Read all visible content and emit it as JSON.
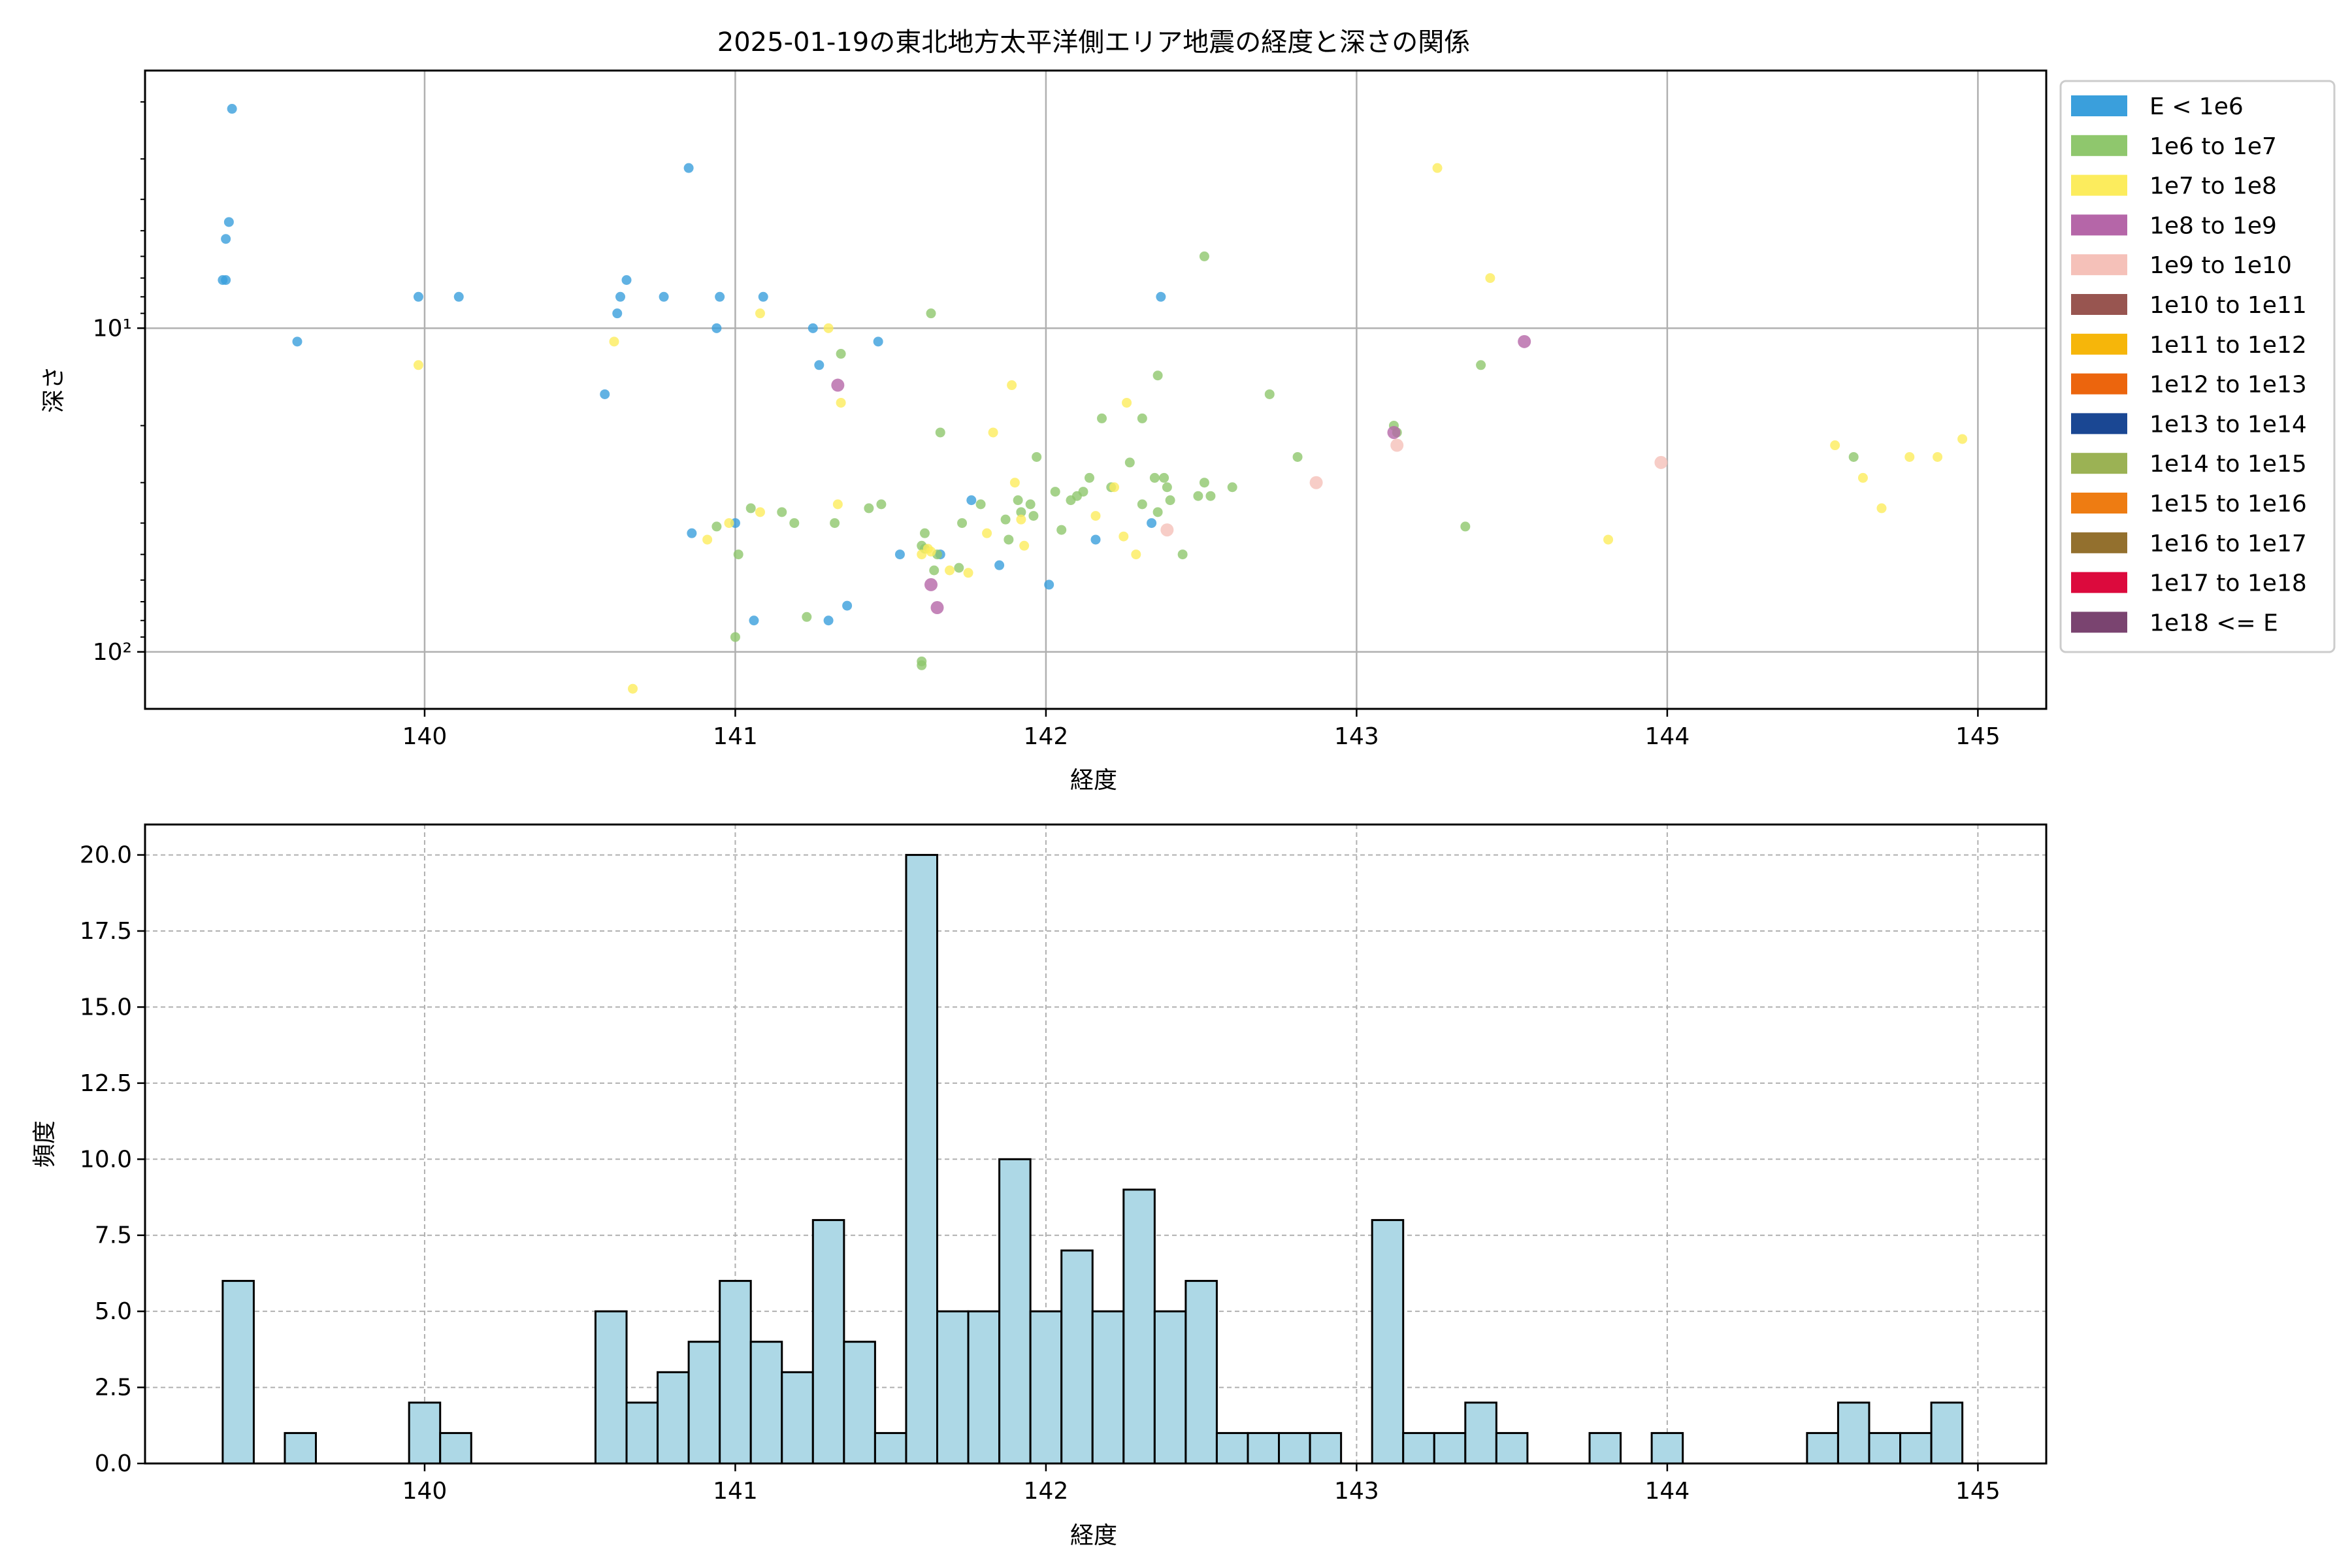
{
  "chart_data": [
    {
      "type": "scatter",
      "title": "2025-01-19の東北地方太平洋側エリア地震の経度と深さの関係",
      "xlabel": "経度",
      "ylabel": "深さ",
      "xlim": [
        139.1,
        145.22
      ],
      "ylim": [
        150,
        1.6
      ],
      "yscale": "log",
      "y_inverted": true,
      "xticks": [
        140,
        141,
        142,
        143,
        144,
        145
      ],
      "xtick_labels": [
        "140",
        "141",
        "142",
        "143",
        "144",
        "145"
      ],
      "yticks": [
        10,
        100
      ],
      "ytick_labels": [
        "10¹",
        "10²"
      ],
      "grid": true,
      "legend_position": "outside-right",
      "legend": [
        {
          "label": "E < 1e6",
          "color": "#3a9fdc"
        },
        {
          "label": "1e6 to 1e7",
          "color": "#8fc76d"
        },
        {
          "label": "1e7 to 1e8",
          "color": "#fcec5d"
        },
        {
          "label": "1e8 to 1e9",
          "color": "#b566a8"
        },
        {
          "label": "1e9 to 1e10",
          "color": "#f5c1b9"
        },
        {
          "label": "1e10 to 1e11",
          "color": "#985550"
        },
        {
          "label": "1e11 to 1e12",
          "color": "#f6b60a"
        },
        {
          "label": "1e12 to 1e13",
          "color": "#ec650d"
        },
        {
          "label": "1e13 to 1e14",
          "color": "#1a4793"
        },
        {
          "label": "1e14 to 1e15",
          "color": "#9bb254"
        },
        {
          "label": "1e15 to 1e16",
          "color": "#ee7c12"
        },
        {
          "label": "1e16 to 1e17",
          "color": "#93702e"
        },
        {
          "label": "1e17 to 1e18",
          "color": "#dc0a3d"
        },
        {
          "label": "1e18 <= E",
          "color": "#7a4470"
        }
      ],
      "series": [
        {
          "category": 0,
          "points": [
            [
              139.38,
              2.1
            ],
            [
              139.37,
              4.7
            ],
            [
              139.36,
              5.3
            ],
            [
              139.36,
              7.1
            ],
            [
              139.35,
              7.1
            ],
            [
              139.59,
              11
            ],
            [
              139.98,
              8.0
            ],
            [
              140.11,
              8.0
            ],
            [
              140.58,
              16
            ],
            [
              140.62,
              9
            ],
            [
              140.63,
              8
            ],
            [
              140.65,
              7.1
            ],
            [
              140.77,
              8
            ],
            [
              140.85,
              3.2
            ],
            [
              140.95,
              8
            ],
            [
              140.94,
              10
            ],
            [
              141.09,
              8
            ],
            [
              140.86,
              43
            ],
            [
              141.0,
              40
            ],
            [
              141.06,
              80
            ],
            [
              141.25,
              10
            ],
            [
              141.27,
              13
            ],
            [
              141.3,
              80
            ],
            [
              141.36,
              72
            ],
            [
              141.46,
              11
            ],
            [
              141.53,
              50
            ],
            [
              141.66,
              50
            ],
            [
              141.76,
              34
            ],
            [
              141.85,
              54
            ],
            [
              142.01,
              62
            ],
            [
              142.16,
              45
            ],
            [
              142.34,
              40
            ],
            [
              142.37,
              8
            ]
          ]
        },
        {
          "category": 1,
          "points": [
            [
              140.94,
              41
            ],
            [
              141.01,
              50
            ],
            [
              141.0,
              90
            ],
            [
              141.05,
              36
            ],
            [
              141.15,
              37
            ],
            [
              141.19,
              40
            ],
            [
              141.23,
              78
            ],
            [
              141.32,
              40
            ],
            [
              141.34,
              12
            ],
            [
              141.43,
              36
            ],
            [
              141.47,
              35
            ],
            [
              141.6,
              47
            ],
            [
              141.61,
              43
            ],
            [
              141.6,
              107
            ],
            [
              141.6,
              110
            ],
            [
              141.61,
              48
            ],
            [
              141.63,
              9
            ],
            [
              141.64,
              56
            ],
            [
              141.65,
              50
            ],
            [
              141.66,
              21
            ],
            [
              141.72,
              55
            ],
            [
              141.73,
              40
            ],
            [
              141.79,
              35
            ],
            [
              141.87,
              39
            ],
            [
              141.88,
              45
            ],
            [
              141.91,
              34
            ],
            [
              141.92,
              37
            ],
            [
              141.95,
              35
            ],
            [
              141.96,
              38
            ],
            [
              141.97,
              25
            ],
            [
              142.03,
              32
            ],
            [
              142.05,
              42
            ],
            [
              142.08,
              34
            ],
            [
              142.1,
              33
            ],
            [
              142.12,
              32
            ],
            [
              142.14,
              29
            ],
            [
              142.18,
              19
            ],
            [
              142.21,
              31
            ],
            [
              142.27,
              26
            ],
            [
              142.31,
              35
            ],
            [
              142.31,
              19
            ],
            [
              142.35,
              29
            ],
            [
              142.36,
              37
            ],
            [
              142.36,
              14
            ],
            [
              142.38,
              29
            ],
            [
              142.39,
              31
            ],
            [
              142.4,
              34
            ],
            [
              142.44,
              50
            ],
            [
              142.49,
              33
            ],
            [
              142.51,
              30
            ],
            [
              142.53,
              33
            ],
            [
              142.51,
              6
            ],
            [
              142.6,
              31
            ],
            [
              142.72,
              16
            ],
            [
              142.81,
              25
            ],
            [
              143.12,
              20
            ],
            [
              143.13,
              21
            ],
            [
              143.35,
              41
            ],
            [
              143.4,
              13
            ],
            [
              144.6,
              25
            ]
          ]
        },
        {
          "category": 2,
          "points": [
            [
              139.98,
              13
            ],
            [
              140.61,
              11
            ],
            [
              140.67,
              130
            ],
            [
              140.91,
              45
            ],
            [
              140.98,
              40
            ],
            [
              141.08,
              37
            ],
            [
              141.08,
              9
            ],
            [
              141.3,
              10
            ],
            [
              141.33,
              35
            ],
            [
              141.34,
              17
            ],
            [
              141.6,
              50
            ],
            [
              141.62,
              48
            ],
            [
              141.63,
              49
            ],
            [
              141.69,
              56
            ],
            [
              141.75,
              57
            ],
            [
              141.81,
              43
            ],
            [
              141.83,
              21
            ],
            [
              141.89,
              15
            ],
            [
              141.9,
              30
            ],
            [
              141.92,
              39
            ],
            [
              141.93,
              47
            ],
            [
              142.16,
              38
            ],
            [
              142.22,
              31
            ],
            [
              142.25,
              44
            ],
            [
              142.26,
              17
            ],
            [
              142.29,
              50
            ],
            [
              143.26,
              3.2
            ],
            [
              143.43,
              7
            ],
            [
              143.81,
              45
            ],
            [
              144.54,
              23
            ],
            [
              144.63,
              29
            ],
            [
              144.69,
              36
            ],
            [
              144.78,
              25
            ],
            [
              144.87,
              25
            ],
            [
              144.95,
              22
            ]
          ]
        },
        {
          "category": 3,
          "points": [
            [
              141.33,
              15
            ],
            [
              141.63,
              62
            ],
            [
              141.65,
              73
            ],
            [
              143.12,
              21
            ],
            [
              143.54,
              11
            ]
          ]
        },
        {
          "category": 4,
          "points": [
            [
              142.39,
              42
            ],
            [
              142.87,
              30
            ],
            [
              143.13,
              23
            ],
            [
              143.98,
              26
            ]
          ]
        }
      ]
    },
    {
      "type": "bar",
      "title": "",
      "xlabel": "経度",
      "ylabel": "頻度",
      "xlim": [
        139.1,
        145.22
      ],
      "ylim": [
        0,
        21
      ],
      "xticks": [
        140,
        141,
        142,
        143,
        144,
        145
      ],
      "xtick_labels": [
        "140",
        "141",
        "142",
        "143",
        "144",
        "145"
      ],
      "yticks": [
        0,
        2.5,
        5,
        7.5,
        10,
        12.5,
        15,
        17.5,
        20
      ],
      "ytick_labels": [
        "0.0",
        "2.5",
        "5.0",
        "7.5",
        "10.0",
        "12.5",
        "15.0",
        "17.5",
        "20.0"
      ],
      "grid": true,
      "bin_start": 139.35,
      "bin_width": 0.1,
      "values": [
        6,
        0,
        1,
        0,
        0,
        0,
        2,
        1,
        0,
        0,
        0,
        0,
        5,
        2,
        3,
        4,
        6,
        4,
        3,
        8,
        4,
        1,
        20,
        5,
        5,
        10,
        5,
        7,
        5,
        9,
        5,
        6,
        1,
        1,
        1,
        1,
        0,
        8,
        1,
        1,
        2,
        1,
        0,
        0,
        1,
        0,
        1,
        0,
        0,
        0,
        0,
        1,
        2,
        1,
        1,
        2
      ],
      "bar_color": "#add8e6"
    }
  ]
}
